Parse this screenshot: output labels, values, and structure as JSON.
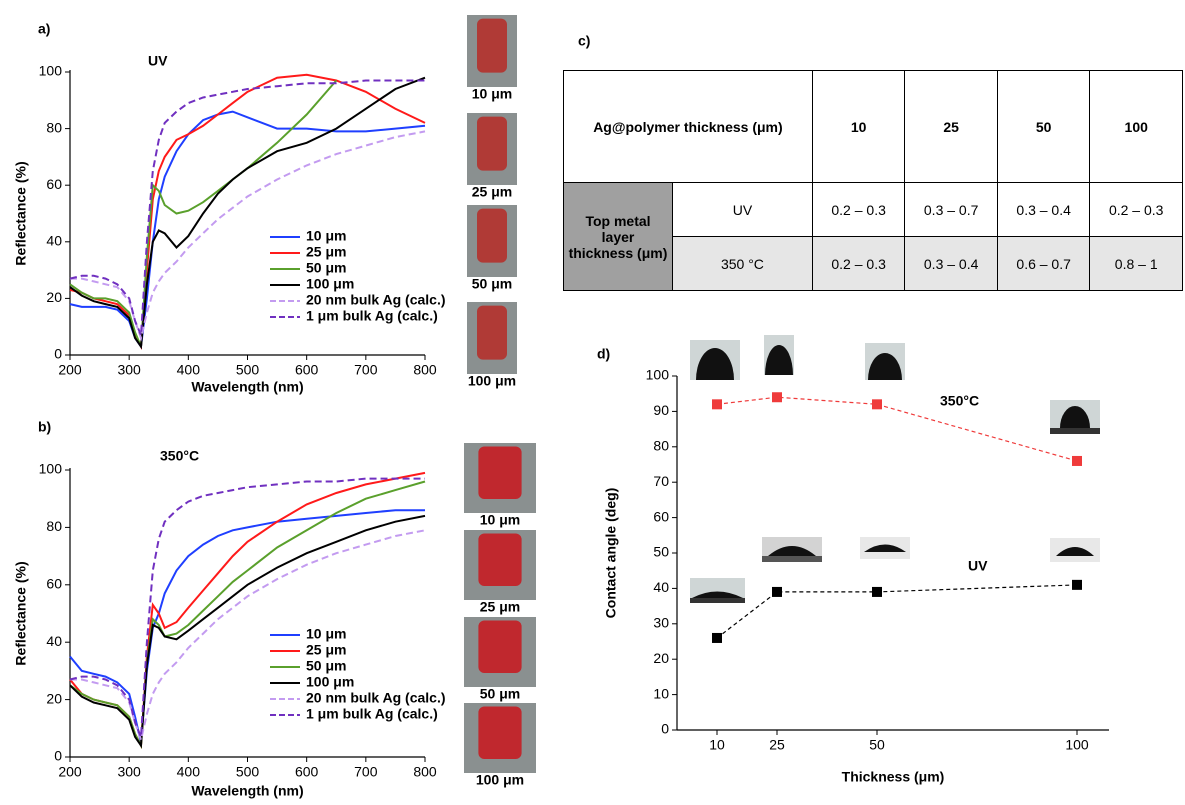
{
  "chart_data": [
    {
      "type": "line",
      "panel": "a)",
      "annotations": [
        {
          "text": "UV",
          "color": "#000000"
        }
      ],
      "xlabel": "Wavelength (nm)",
      "ylabel": "Reflectance (%)",
      "x": [
        200,
        220,
        240,
        260,
        280,
        300,
        310,
        320,
        330,
        340,
        350,
        360,
        380,
        400,
        425,
        450,
        475,
        500,
        550,
        600,
        650,
        700,
        750,
        800
      ],
      "xlim": [
        200,
        800
      ],
      "xticks": [
        200,
        300,
        400,
        500,
        600,
        700,
        800
      ],
      "ylim": [
        0,
        100
      ],
      "yticks": [
        0,
        20,
        40,
        60,
        80,
        100
      ],
      "series": [
        {
          "name": "10 μm",
          "color": "#1f3fff",
          "linestyle": "solid",
          "values": [
            18,
            17,
            17,
            17,
            16,
            12,
            6,
            3,
            20,
            40,
            55,
            63,
            72,
            78,
            83,
            85,
            86,
            84,
            80,
            80,
            79,
            79,
            80,
            81
          ]
        },
        {
          "name": "25 μm",
          "color": "#ff1a1a",
          "linestyle": "solid",
          "values": [
            23,
            22,
            20,
            19,
            18,
            14,
            7,
            3,
            30,
            55,
            65,
            70,
            76,
            78,
            81,
            85,
            89,
            93,
            98,
            99,
            97,
            93,
            87,
            82
          ]
        },
        {
          "name": "50 μm",
          "color": "#5aa02c",
          "linestyle": "solid",
          "values": [
            25,
            22,
            20,
            20,
            19,
            15,
            8,
            3,
            35,
            60,
            58,
            53,
            50,
            51,
            54,
            58,
            62,
            66,
            75,
            85,
            97,
            null,
            null,
            null
          ]
        },
        {
          "name": "100 μm",
          "color": "#000000",
          "linestyle": "solid",
          "values": [
            24,
            21,
            19,
            18,
            17,
            13,
            6,
            3,
            25,
            40,
            44,
            43,
            38,
            42,
            50,
            57,
            62,
            66,
            72,
            75,
            80,
            87,
            94,
            98
          ]
        },
        {
          "name": "20 nm bulk Ag (calc.)",
          "color": "#c39bf0",
          "linestyle": "dashed",
          "values": [
            27,
            27,
            26,
            25,
            24,
            19,
            12,
            6,
            15,
            22,
            26,
            29,
            33,
            38,
            43,
            48,
            52,
            56,
            62,
            67,
            71,
            74,
            77,
            79
          ]
        },
        {
          "name": "1 μm bulk Ag (calc.)",
          "color": "#7030c0",
          "linestyle": "dashed",
          "values": [
            27,
            28,
            28,
            27,
            25,
            20,
            12,
            7,
            40,
            65,
            76,
            82,
            86,
            89,
            91,
            92,
            93,
            94,
            95,
            96,
            96,
            97,
            97,
            97
          ]
        }
      ],
      "photo_labels": [
        "10 μm",
        "25 μm",
        "50 μm",
        "100 μm"
      ]
    },
    {
      "type": "line",
      "panel": "b)",
      "annotations": [
        {
          "text": "350°C",
          "color": "#ff1a1a"
        }
      ],
      "xlabel": "Wavelength (nm)",
      "ylabel": "Reflectance (%)",
      "x": [
        200,
        220,
        240,
        260,
        280,
        300,
        310,
        320,
        330,
        340,
        350,
        360,
        380,
        400,
        425,
        450,
        475,
        500,
        550,
        600,
        650,
        700,
        750,
        800
      ],
      "xlim": [
        200,
        800
      ],
      "xticks": [
        200,
        300,
        400,
        500,
        600,
        700,
        800
      ],
      "ylim": [
        0,
        100
      ],
      "yticks": [
        0,
        20,
        40,
        60,
        80,
        100
      ],
      "series": [
        {
          "name": "10 μm",
          "color": "#1f3fff",
          "linestyle": "solid",
          "values": [
            35,
            30,
            29,
            28,
            26,
            22,
            14,
            5,
            30,
            45,
            50,
            57,
            65,
            70,
            74,
            77,
            79,
            80,
            82,
            83,
            84,
            85,
            86,
            86
          ]
        },
        {
          "name": "25 μm",
          "color": "#ff1a1a",
          "linestyle": "solid",
          "values": [
            27,
            22,
            20,
            19,
            18,
            14,
            8,
            4,
            35,
            53,
            50,
            45,
            47,
            52,
            58,
            64,
            70,
            75,
            82,
            88,
            92,
            95,
            97,
            99
          ]
        },
        {
          "name": "50 μm",
          "color": "#5aa02c",
          "linestyle": "solid",
          "values": [
            25,
            22,
            20,
            19,
            18,
            14,
            8,
            4,
            33,
            48,
            46,
            42,
            43,
            46,
            51,
            56,
            61,
            65,
            73,
            79,
            85,
            90,
            93,
            96
          ]
        },
        {
          "name": "100 μm",
          "color": "#000000",
          "linestyle": "solid",
          "values": [
            25,
            21,
            19,
            18,
            17,
            13,
            7,
            4,
            32,
            46,
            45,
            42,
            41,
            44,
            48,
            52,
            56,
            60,
            66,
            71,
            75,
            79,
            82,
            84
          ]
        },
        {
          "name": "20 nm bulk Ag (calc.)",
          "color": "#c39bf0",
          "linestyle": "dashed",
          "values": [
            27,
            27,
            26,
            25,
            24,
            19,
            12,
            6,
            15,
            22,
            26,
            29,
            33,
            38,
            43,
            48,
            52,
            56,
            62,
            67,
            71,
            74,
            77,
            79
          ]
        },
        {
          "name": "1 μm bulk Ag (calc.)",
          "color": "#7030c0",
          "linestyle": "dashed",
          "values": [
            27,
            28,
            28,
            27,
            25,
            20,
            12,
            7,
            40,
            65,
            76,
            82,
            86,
            89,
            91,
            92,
            93,
            94,
            95,
            96,
            96,
            97,
            97,
            97
          ]
        }
      ],
      "photo_labels": [
        "10 μm",
        "25 μm",
        "50 μm",
        "100 μm"
      ]
    },
    {
      "type": "line",
      "panel": "d)",
      "markers": true,
      "annotations": [],
      "xlabel": "Thickness (μm)",
      "ylabel": "Contact angle (deg)",
      "x": [
        10,
        25,
        50,
        100
      ],
      "xlim": [
        0,
        108
      ],
      "xticks": [
        10,
        25,
        50,
        100
      ],
      "ylim": [
        0,
        100
      ],
      "yticks": [
        0,
        10,
        20,
        30,
        40,
        50,
        60,
        70,
        80,
        90,
        100
      ],
      "series": [
        {
          "name": "350°C",
          "color": "#ef3b3b",
          "linestyle": "dashed",
          "values": [
            92,
            94,
            92,
            76
          ]
        },
        {
          "name": "UV",
          "color": "#000000",
          "linestyle": "dashed",
          "values": [
            26,
            39,
            39,
            41
          ]
        }
      ]
    }
  ],
  "table": {
    "panel": "c)",
    "header": [
      "Ag@polymer thickness (μm)",
      "10",
      "25",
      "50",
      "100"
    ],
    "row_header": "Top metal layer thickness (μm)",
    "rows": [
      [
        "UV",
        "0.2 – 0.3",
        "0.3 – 0.7",
        "0.3 – 0.4",
        "0.2 – 0.3"
      ],
      [
        "350 °C",
        "0.2 – 0.3",
        "0.3 – 0.4",
        "0.6 – 0.7",
        "0.8 – 1"
      ]
    ]
  }
}
